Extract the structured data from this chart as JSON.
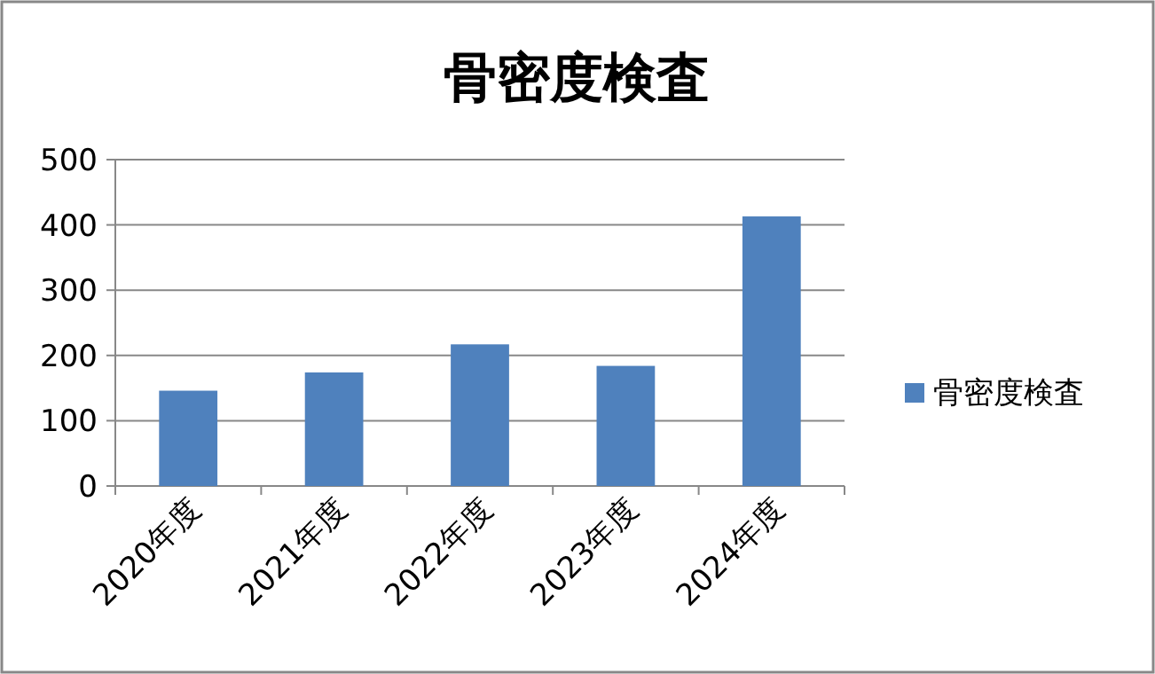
{
  "chart_data": {
    "type": "bar",
    "title": "骨密度検査",
    "categories": [
      "2020年度",
      "2021年度",
      "2022年度",
      "2023年度",
      "2024年度"
    ],
    "series": [
      {
        "name": "骨密度検査",
        "color": "#4f81bd",
        "values": [
          146,
          174,
          217,
          184,
          413
        ]
      }
    ],
    "ylim": [
      0,
      500
    ],
    "yticks": [
      0,
      100,
      200,
      300,
      400,
      500
    ],
    "grid": "y",
    "legend": "right"
  }
}
